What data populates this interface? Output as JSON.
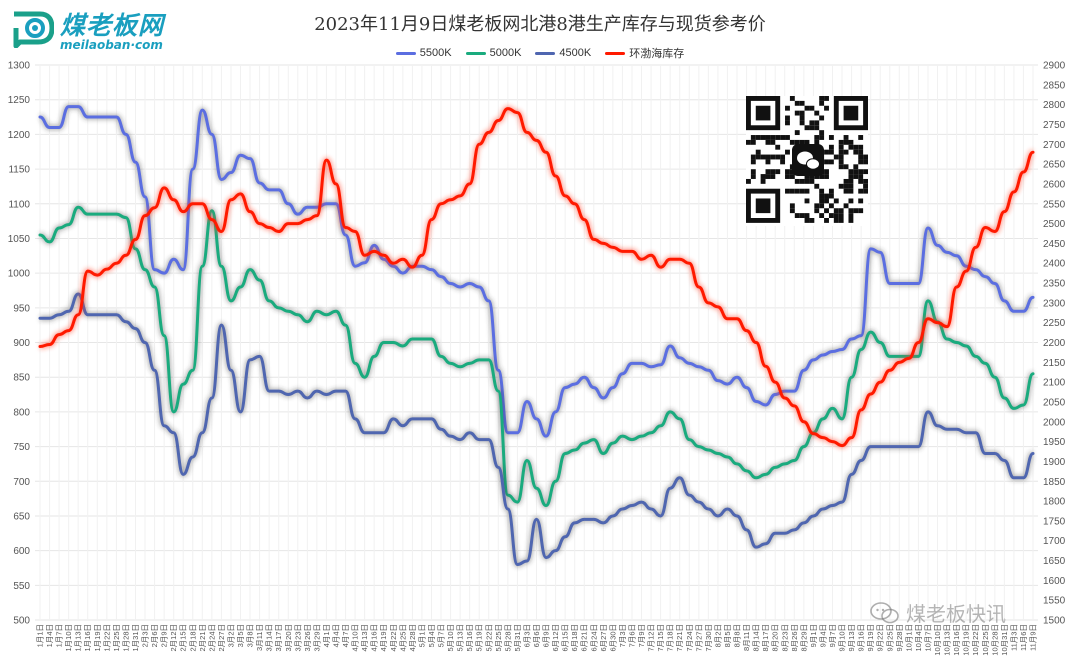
{
  "logo": {
    "name": "煤老板网",
    "url": "meilaoban·com"
  },
  "title": "2023年11月9日煤老板网北港8港生产库存与现货参考价",
  "watermark": "煤老板快讯",
  "icons": {
    "qr": "qr-code-icon",
    "wechat": "wechat-icon"
  },
  "chart_data": {
    "type": "line",
    "title": "2023年11月9日煤老板网北港8港生产库存与现货参考价",
    "x": [
      "1月1日",
      "1月4日",
      "1月7日",
      "1月10日",
      "1月13日",
      "1月16日",
      "1月19日",
      "1月22日",
      "1月25日",
      "1月28日",
      "1月31日",
      "2月3日",
      "2月6日",
      "2月9日",
      "2月12日",
      "2月15日",
      "2月18日",
      "2月21日",
      "2月24日",
      "2月27日",
      "3月2日",
      "3月5日",
      "3月8日",
      "3月11日",
      "3月14日",
      "3月17日",
      "3月20日",
      "3月23日",
      "3月26日",
      "3月29日",
      "4月1日",
      "4月4日",
      "4月7日",
      "4月10日",
      "4月13日",
      "4月16日",
      "4月19日",
      "4月22日",
      "4月25日",
      "4月28日",
      "5月1日",
      "5月4日",
      "5月7日",
      "5月10日",
      "5月13日",
      "5月16日",
      "5月19日",
      "5月22日",
      "5月25日",
      "5月28日",
      "5月31日",
      "6月3日",
      "6月6日",
      "6月9日",
      "6月12日",
      "6月15日",
      "6月18日",
      "6月21日",
      "6月24日",
      "6月27日",
      "6月30日",
      "7月3日",
      "7月6日",
      "7月9日",
      "7月12日",
      "7月15日",
      "7月18日",
      "7月21日",
      "7月24日",
      "7月27日",
      "7月30日",
      "8月2日",
      "8月5日",
      "8月8日",
      "8月11日",
      "8月14日",
      "8月17日",
      "8月20日",
      "8月23日",
      "8月26日",
      "8月29日",
      "9月1日",
      "9月4日",
      "9月7日",
      "9月10日",
      "9月13日",
      "9月16日",
      "9月19日",
      "9月22日",
      "9月25日",
      "9月28日",
      "10月1日",
      "10月4日",
      "10月7日",
      "10月10日",
      "10月13日",
      "10月16日",
      "10月19日",
      "10月22日",
      "10月25日",
      "10月28日",
      "10月31日",
      "11月3日",
      "11月6日",
      "11月9日"
    ],
    "xtick_labels": [
      "1月1日",
      "1月4日",
      "1月7日",
      "1月10日",
      "1月13日",
      "1月16日",
      "1月19日",
      "1月22日",
      "1月25日",
      "1月28日",
      "1月31日",
      "2月3日",
      "2月6日",
      "2月9日",
      "2月12日",
      "2月15日",
      "2月18日",
      "2月21日",
      "2月24日",
      "2月27日",
      "3月2日",
      "3月5日",
      "3月8日",
      "3月11日",
      "3月14日",
      "3月17日",
      "3月20日",
      "3月23日",
      "3月26日",
      "3月29日",
      "4月1日",
      "4月4日",
      "4月7日",
      "4月10日",
      "4月13日",
      "4月16日",
      "4月19日",
      "4月22日",
      "4月25日",
      "4月28日",
      "5月1日",
      "5月4日",
      "5月7日",
      "5月10日",
      "5月13日",
      "5月16日",
      "5月19日",
      "5月22日",
      "5月25日",
      "5月28日",
      "5月31日",
      "6月3日",
      "6月6日",
      "6月9日",
      "6月12日",
      "6月15日",
      "6月18日",
      "6月21日",
      "6月24日",
      "6月27日",
      "6月30日",
      "7月3日",
      "7月6日",
      "7月9日",
      "7月12日",
      "7月15日",
      "7月18日",
      "7月21日",
      "7月24日",
      "7月27日",
      "7月30日",
      "8月2日",
      "8月5日",
      "8月8日",
      "8月11日",
      "8月14日",
      "8月17日",
      "8月20日",
      "8月23日",
      "8月26日",
      "8月29日",
      "9月1日",
      "9月4日",
      "9月7日",
      "9月10日",
      "9月13日",
      "9月16日",
      "9月19日",
      "9月22日",
      "9月25日",
      "9月28日",
      "10月1日",
      "10月4日",
      "10月7日",
      "10月10日",
      "10月13日",
      "10月16日",
      "10月19日",
      "10月22日",
      "10月25日",
      "10月28日",
      "10月31日",
      "11月3日",
      "11月6日",
      "11月9日"
    ],
    "ylim_left": [
      500,
      1300
    ],
    "yticks_left": [
      500,
      550,
      600,
      650,
      700,
      750,
      800,
      850,
      900,
      950,
      1000,
      1050,
      1100,
      1150,
      1200,
      1250,
      1300
    ],
    "ylim_right": [
      1500,
      2900
    ],
    "yticks_right": [
      1500,
      1550,
      1600,
      1650,
      1700,
      1750,
      1800,
      1850,
      1900,
      1950,
      2000,
      2050,
      2100,
      2150,
      2200,
      2250,
      2300,
      2350,
      2400,
      2450,
      2500,
      2550,
      2600,
      2650,
      2700,
      2750,
      2800,
      2850,
      2900
    ],
    "grid": true,
    "legend_position": "top",
    "series": [
      {
        "name": "5500K",
        "color": "#5b6ee1",
        "axis": "left",
        "values": [
          1225,
          1210,
          1210,
          1240,
          1240,
          1225,
          1225,
          1225,
          1225,
          1200,
          1160,
          1110,
          1005,
          1000,
          1020,
          1005,
          1150,
          1235,
          1200,
          1135,
          1145,
          1170,
          1165,
          1130,
          1120,
          1120,
          1100,
          1085,
          1095,
          1095,
          1100,
          1100,
          1055,
          1010,
          1015,
          1040,
          1020,
          1010,
          1000,
          1010,
          1010,
          1005,
          995,
          985,
          980,
          985,
          980,
          960,
          860,
          770,
          770,
          815,
          790,
          765,
          800,
          835,
          840,
          850,
          835,
          820,
          835,
          855,
          870,
          870,
          865,
          868,
          895,
          878,
          870,
          865,
          860,
          845,
          840,
          850,
          835,
          815,
          810,
          825,
          830,
          830,
          860,
          875,
          882,
          887,
          890,
          905,
          910,
          1035,
          1030,
          985,
          985,
          985,
          985,
          1065,
          1040,
          1030,
          1025,
          1010,
          1005,
          995,
          985,
          960,
          945,
          945,
          965
        ]
      },
      {
        "name": "5000K",
        "color": "#1aab7e",
        "axis": "left",
        "values": [
          1055,
          1045,
          1065,
          1070,
          1095,
          1085,
          1085,
          1085,
          1085,
          1080,
          1035,
          1005,
          980,
          910,
          800,
          840,
          860,
          1010,
          1090,
          1010,
          960,
          980,
          1005,
          990,
          960,
          950,
          945,
          940,
          930,
          945,
          940,
          945,
          925,
          870,
          850,
          880,
          900,
          900,
          895,
          905,
          905,
          905,
          880,
          870,
          865,
          870,
          875,
          875,
          830,
          680,
          670,
          730,
          690,
          665,
          700,
          740,
          745,
          755,
          760,
          740,
          755,
          765,
          760,
          765,
          770,
          780,
          800,
          790,
          760,
          750,
          745,
          740,
          735,
          725,
          715,
          705,
          710,
          720,
          725,
          730,
          750,
          770,
          790,
          805,
          790,
          850,
          890,
          915,
          900,
          880,
          880,
          880,
          880,
          960,
          930,
          905,
          900,
          895,
          880,
          870,
          850,
          820,
          805,
          810,
          855
        ]
      },
      {
        "name": "4500K",
        "color": "#4f66b0",
        "axis": "left",
        "values": [
          935,
          935,
          940,
          945,
          970,
          940,
          940,
          940,
          940,
          930,
          920,
          900,
          860,
          780,
          770,
          710,
          735,
          770,
          820,
          925,
          860,
          800,
          875,
          880,
          830,
          830,
          825,
          830,
          820,
          830,
          825,
          830,
          830,
          790,
          770,
          770,
          770,
          790,
          780,
          790,
          790,
          790,
          775,
          765,
          760,
          770,
          760,
          760,
          720,
          660,
          580,
          585,
          645,
          590,
          600,
          620,
          640,
          645,
          645,
          640,
          650,
          660,
          665,
          670,
          660,
          650,
          690,
          705,
          680,
          670,
          660,
          650,
          660,
          650,
          630,
          605,
          610,
          625,
          625,
          630,
          640,
          650,
          660,
          665,
          670,
          710,
          730,
          750,
          750,
          750,
          750,
          750,
          750,
          800,
          780,
          775,
          775,
          770,
          770,
          740,
          740,
          730,
          705,
          705,
          740
        ]
      },
      {
        "name": "环渤海库存",
        "color": "#ff1a00",
        "axis": "right",
        "values": [
          2190,
          2195,
          2220,
          2230,
          2270,
          2380,
          2370,
          2385,
          2400,
          2420,
          2460,
          2520,
          2540,
          2590,
          2560,
          2530,
          2550,
          2550,
          2510,
          2480,
          2560,
          2575,
          2530,
          2500,
          2490,
          2480,
          2500,
          2500,
          2510,
          2520,
          2660,
          2600,
          2490,
          2480,
          2420,
          2430,
          2420,
          2400,
          2410,
          2390,
          2420,
          2510,
          2550,
          2560,
          2570,
          2600,
          2700,
          2730,
          2760,
          2790,
          2780,
          2730,
          2710,
          2680,
          2620,
          2570,
          2550,
          2510,
          2460,
          2450,
          2440,
          2430,
          2430,
          2410,
          2420,
          2390,
          2410,
          2410,
          2400,
          2340,
          2300,
          2290,
          2260,
          2260,
          2230,
          2200,
          2140,
          2100,
          2060,
          2040,
          2000,
          1970,
          1960,
          1950,
          1940,
          1960,
          2030,
          2070,
          2100,
          2130,
          2150,
          2160,
          2200,
          2260,
          2250,
          2240,
          2340,
          2380,
          2440,
          2490,
          2480,
          2530,
          2580,
          2630,
          2680
        ]
      }
    ]
  }
}
